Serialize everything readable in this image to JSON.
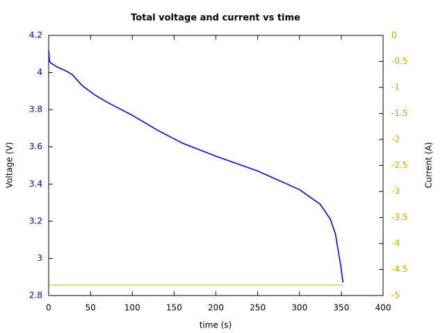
{
  "chart_data": {
    "type": "line",
    "title": "Total voltage and current vs time",
    "x_label": "time (s)",
    "y_label": "Voltage (V)",
    "y2_label": "Current (A)",
    "x": [
      0,
      1,
      3,
      10,
      20,
      28,
      40,
      55,
      70,
      100,
      130,
      160,
      200,
      250,
      275,
      300,
      325,
      337,
      343,
      349,
      352
    ],
    "series": [
      {
        "name": "Voltage",
        "color": "#0000e0",
        "axis": "y",
        "values": [
          4.12,
          4.06,
          4.05,
          4.03,
          4.01,
          3.99,
          3.93,
          3.88,
          3.84,
          3.77,
          3.69,
          3.62,
          3.55,
          3.47,
          3.42,
          3.37,
          3.29,
          3.21,
          3.13,
          2.97,
          2.87
        ]
      },
      {
        "name": "Current",
        "color": "#e0a000",
        "axis": "y2",
        "values": [
          -4.8,
          -4.8,
          -4.8,
          -4.8,
          -4.8,
          -4.8,
          -4.8,
          -4.8,
          -4.8,
          -4.8,
          -4.8,
          -4.8,
          -4.8,
          -4.8,
          -4.8,
          -4.8,
          -4.8,
          -4.8,
          -4.8,
          -4.8,
          -4.8
        ]
      }
    ],
    "xlim": [
      0,
      400
    ],
    "xticks": [
      0,
      50,
      100,
      150,
      200,
      250,
      300,
      350,
      400
    ],
    "ylim": [
      2.8,
      4.2
    ],
    "yticks": [
      2.8,
      3,
      3.2,
      3.4,
      3.6,
      3.8,
      4,
      4.2
    ],
    "y2lim": [
      -5,
      0
    ],
    "y2ticks": [
      -5,
      -4.5,
      -4,
      -3.5,
      -3,
      -2.5,
      -2,
      -1.5,
      -1,
      -0.5,
      0
    ],
    "y_tick_color": "#0000e0",
    "y2_tick_color": "#e0a000",
    "grid": false
  }
}
